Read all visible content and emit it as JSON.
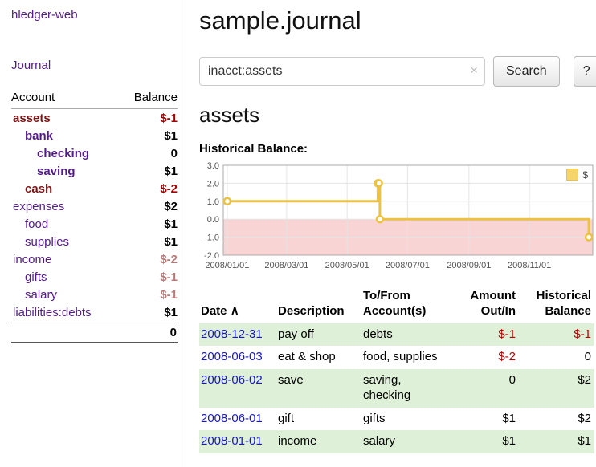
{
  "app": {
    "brand": "hledger-web",
    "nav": {
      "journal": "Journal"
    }
  },
  "sidebar": {
    "col_account": "Account",
    "col_balance": "Balance",
    "accounts": [
      {
        "name": "assets",
        "depth": 1,
        "balance": "$-1",
        "in_query_tree": true,
        "name_negative": true,
        "balance_tone": "strong"
      },
      {
        "name": "bank",
        "depth": 2,
        "balance": "$1",
        "in_query_tree": true,
        "name_negative": false,
        "balance_tone": "normal"
      },
      {
        "name": "checking",
        "depth": 3,
        "balance": "0",
        "in_query_tree": true,
        "name_negative": false,
        "balance_tone": "normal"
      },
      {
        "name": "saving",
        "depth": 3,
        "balance": "$1",
        "in_query_tree": true,
        "name_negative": false,
        "balance_tone": "normal"
      },
      {
        "name": "cash",
        "depth": 2,
        "balance": "$-2",
        "in_query_tree": true,
        "name_negative": true,
        "balance_tone": "strong"
      },
      {
        "name": "expenses",
        "depth": 1,
        "balance": "$2",
        "in_query_tree": false,
        "name_negative": false,
        "balance_tone": "normal"
      },
      {
        "name": "food",
        "depth": 2,
        "balance": "$1",
        "in_query_tree": false,
        "name_negative": false,
        "balance_tone": "normal"
      },
      {
        "name": "supplies",
        "depth": 2,
        "balance": "$1",
        "in_query_tree": false,
        "name_negative": false,
        "balance_tone": "normal"
      },
      {
        "name": "income",
        "depth": 1,
        "balance": "$-2",
        "in_query_tree": false,
        "name_negative": false,
        "balance_tone": "soft"
      },
      {
        "name": "gifts",
        "depth": 2,
        "balance": "$-1",
        "in_query_tree": false,
        "name_negative": false,
        "balance_tone": "soft"
      },
      {
        "name": "salary",
        "depth": 2,
        "balance": "$-1",
        "in_query_tree": false,
        "name_negative": false,
        "balance_tone": "soft"
      },
      {
        "name": "liabilities:debts",
        "depth": 1,
        "balance": "$1",
        "in_query_tree": false,
        "name_negative": false,
        "balance_tone": "normal"
      }
    ],
    "total": "0"
  },
  "main": {
    "title": "sample.journal",
    "search": {
      "value": "inacct:assets",
      "clear": "×",
      "button": "Search",
      "help": "?"
    },
    "account_title": "assets",
    "chart_label": "Historical Balance:",
    "register": {
      "headers": {
        "date": "Date",
        "sort_indicator": "∧",
        "description": "Description",
        "tofrom_l1": "To/From",
        "tofrom_l2": "Account(s)",
        "amount_l1": "Amount",
        "amount_l2": "Out/In",
        "hist_l1": "Historical",
        "hist_l2": "Balance"
      },
      "rows": [
        {
          "date": "2008-12-31",
          "description": "pay off",
          "accounts": "debts",
          "amount": "$-1",
          "amount_neg": true,
          "balance": "$-1",
          "balance_neg": true
        },
        {
          "date": "2008-06-03",
          "description": "eat & shop",
          "accounts": "food, supplies",
          "amount": "$-2",
          "amount_neg": true,
          "balance": "0",
          "balance_neg": false
        },
        {
          "date": "2008-06-02",
          "description": "save",
          "accounts": "saving, checking",
          "amount": "0",
          "amount_neg": false,
          "balance": "$2",
          "balance_neg": false
        },
        {
          "date": "2008-06-01",
          "description": "gift",
          "accounts": "gifts",
          "amount": "$1",
          "amount_neg": false,
          "balance": "$2",
          "balance_neg": false
        },
        {
          "date": "2008-01-01",
          "description": "income",
          "accounts": "salary",
          "amount": "$1",
          "amount_neg": false,
          "balance": "$1",
          "balance_neg": false
        }
      ]
    }
  },
  "chart_data": {
    "type": "line",
    "title": "Historical Balance",
    "step": true,
    "series": [
      {
        "name": "$",
        "color": "#edc240",
        "points": [
          [
            "2008-01-01",
            1
          ],
          [
            "2008-06-01",
            2
          ],
          [
            "2008-06-02",
            2
          ],
          [
            "2008-06-03",
            0
          ],
          [
            "2008-12-31",
            -1
          ]
        ]
      }
    ],
    "ylim": [
      -2,
      3
    ],
    "yticks": [
      3,
      2,
      1,
      0,
      -1,
      -2
    ],
    "ytick_labels": [
      "3.0",
      "2.0",
      "1.0",
      "0.0",
      "-1.0",
      "-2.0"
    ],
    "xticks": [
      "2008/01/01",
      "2008/03/01",
      "2008/05/01",
      "2008/07/01",
      "2008/09/01",
      "2008/11/01"
    ],
    "grid": true,
    "legend": {
      "label": "$",
      "position": "top-right"
    },
    "negative_region_color": "#f9d4d4",
    "line_color": "#edc240"
  }
}
